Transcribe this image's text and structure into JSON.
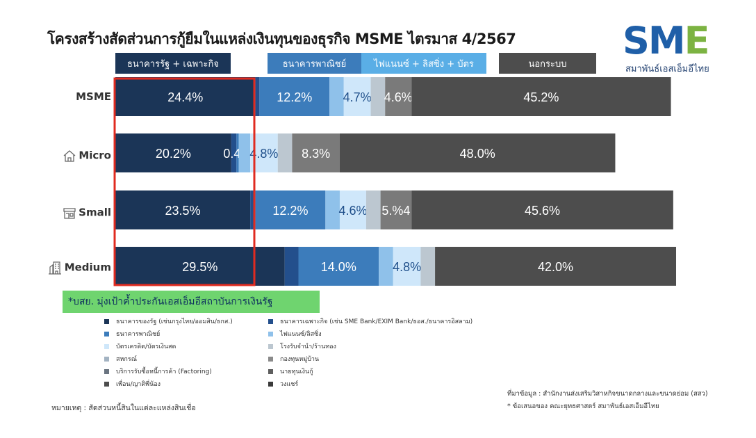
{
  "title": "โครงสร้างสัดส่วนการกู้ยืมในแหล่งเงินทุนของธุรกิจ MSME ไตรมาส 4/2567",
  "logo": {
    "text_s": "S",
    "text_m": "M",
    "text_e": "E",
    "subtitle": "สมาพันธ์เอสเอ็มอีไทย"
  },
  "group_headers": [
    {
      "label": "ธนาคารรัฐ + เฉพาะกิจ",
      "color": "#1b3557"
    },
    {
      "label": "ธนาคารพาณิชย์",
      "color": "#3c7cbb"
    },
    {
      "label": "ไฟแนนซ์ + ลิสซิ่ง + บัตร",
      "color": "#5aaee6"
    },
    {
      "label": "นอกระบบ",
      "color": "#4d4d4d"
    }
  ],
  "highlight_color": "#e02b20",
  "note": "*บสย. มุ่งเป้าค้ำประกันเอสเอ็มอีสถาบันการเงินรัฐ",
  "legend": [
    {
      "label": "ธนาคารของรัฐ (เช่นกรุงไทย/ออมสิน/ธกส.)",
      "color": "#1b3557"
    },
    {
      "label": "ธนาคารเฉพาะกิจ (เช่น SME Bank/EXIM Bank/ธอส./ธนาคารอิสลาม)",
      "color": "#234f8c"
    },
    {
      "label": "ธนาคารพาณิชย์",
      "color": "#3c7cbb"
    },
    {
      "label": "ไฟแนนซ์/ลิสซิ่ง",
      "color": "#8fc1ea"
    },
    {
      "label": "บัตรเครดิต/บัตรเงินสด",
      "color": "#cfe7fa"
    },
    {
      "label": "โรงรับจำนำ/ร้านทอง",
      "color": "#bcc7d0"
    },
    {
      "label": "สหกรณ์",
      "color": "#a3b3c2"
    },
    {
      "label": "กองทุนหมู่บ้าน",
      "color": "#8a8a8a"
    },
    {
      "label": "บริการรับซื้อหนี้การค้า (Factoring)",
      "color": "#6a7480"
    },
    {
      "label": "นายทุนเงินกู้",
      "color": "#5e5e5e"
    },
    {
      "label": "เพื่อน/ญาติพี่น้อง",
      "color": "#4d4d4d"
    },
    {
      "label": "วงแชร์",
      "color": "#3a3a3a"
    }
  ],
  "source_lines": [
    "ที่มาข้อมูล : สำนักงานส่งเสริมวิสาหกิจขนาดกลางและขนาดย่อม (สสว)",
    "* ข้อเสนอของ คณะยุทธศาสตร์ สมาพันธ์เอสเอ็มอีไทย"
  ],
  "footnote": "หมายเหตุ : สัดส่วนหนี้สินในแต่ละแหล่งสินเชื่อ",
  "chart_data": {
    "type": "bar",
    "orientation": "horizontal",
    "stacked": true,
    "xlim": [
      0,
      100
    ],
    "categories": [
      "MSME",
      "Micro",
      "Small",
      "Medium"
    ],
    "category_icons": [
      "",
      "house-icon",
      "shop-icon",
      "building-icon"
    ],
    "series": [
      {
        "group": "ธนาคารรัฐ + เฉพาะกิจ",
        "color": "#1b3557",
        "values": [
          24.4,
          20.2,
          23.5,
          29.5
        ],
        "labels": [
          "24.4%",
          "20.2%",
          "23.5%",
          "29.5%"
        ]
      },
      {
        "group": "ธนาคารรัฐ + เฉพาะกิจ",
        "color": "#234f8c",
        "values": [
          0.7,
          0.9,
          0.9,
          2.4
        ],
        "labels": [
          "",
          "",
          "",
          ""
        ]
      },
      {
        "group": "ธนาคารพาณิชย์",
        "color": "#3c7cbb",
        "values": [
          12.2,
          0.4,
          12.2,
          14.0
        ],
        "labels": [
          "12.2%",
          "0.4%",
          "12.2%",
          "14.0%"
        ]
      },
      {
        "group": "ไฟแนนซ์ + ลิสซิ่ง + บัตร",
        "color": "#8fc1ea",
        "values": [
          2.5,
          2.0,
          2.5,
          2.5
        ],
        "labels": [
          "",
          "",
          "",
          ""
        ]
      },
      {
        "group": "ไฟแนนซ์ + ลิสซิ่ง + บัตร",
        "color": "#cfe7fa",
        "values": [
          4.7,
          4.8,
          4.6,
          4.8
        ],
        "labels": [
          "4.7%",
          "4.8%",
          "4.6%",
          "4.8%"
        ]
      },
      {
        "group": "ไฟแนนซ์ + ลิสซิ่ง + บัตร",
        "color": "#bcc7d0",
        "values": [
          2.5,
          2.5,
          2.5,
          2.5
        ],
        "labels": [
          "",
          "",
          "",
          ""
        ]
      },
      {
        "group": "นอกระบบ",
        "color": "#7a7a7a",
        "values": [
          4.6,
          8.3,
          5.4,
          0
        ],
        "labels": [
          "4.6%",
          "8.3%",
          "5.%4",
          ""
        ]
      },
      {
        "group": "นอกระบบ",
        "color": "#4d4d4d",
        "values": [
          45.2,
          48.0,
          45.6,
          42.0
        ],
        "labels": [
          "45.2%",
          "48.0%",
          "45.6%",
          "42.0%"
        ]
      }
    ]
  }
}
